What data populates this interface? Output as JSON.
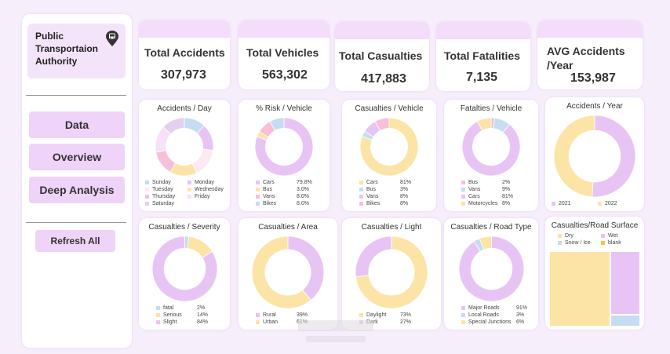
{
  "sidebar": {
    "org_name": "Public Transportaion Authority",
    "org_icon": "bus-location-pin-icon",
    "nav": [
      {
        "label": "Data"
      },
      {
        "label": "Overview"
      },
      {
        "label": "Deep Analysis"
      }
    ],
    "refresh_label": "Refresh All"
  },
  "kpis": [
    {
      "label": "Total Accidents",
      "value": "307,973"
    },
    {
      "label": "Total Vehicles",
      "value": "563,302"
    },
    {
      "label": "Total Casualties",
      "value": "417,883"
    },
    {
      "label": "Total Fatalities",
      "value": "7,135"
    },
    {
      "label": "AVG Accidents /Year",
      "value": "153,987"
    }
  ],
  "colors": {
    "background": "#f7eefb",
    "accent": "#efd3f8",
    "lavender": "#e8c4f4",
    "peach": "#fbe4a6",
    "blue": "#c5dcf2",
    "pink": "#f8bfd8"
  },
  "chart_data": [
    {
      "type": "donut",
      "title": "Accidents / Day",
      "categories": [
        "Sunday",
        "Monday",
        "Tuesday",
        "Wednesday",
        "Thursday",
        "Friday",
        "Saturday"
      ],
      "values": [
        12,
        15,
        16,
        15,
        14,
        15,
        13
      ],
      "colors": [
        "#c5dcf2",
        "#e8c4f4",
        "#fce9f1",
        "#fbe4a6",
        "#f8bfd8",
        "#f6e1f8",
        "#e4d0ee"
      ],
      "legend_columns": 2
    },
    {
      "type": "donut",
      "title": "% Risk / Vehicle",
      "categories": [
        "Cars",
        "Bus",
        "Vans",
        "Bikes"
      ],
      "labels": [
        "79.8%",
        "3.0%",
        "8.0%",
        "8.0%"
      ],
      "values": [
        79.8,
        3.0,
        8.0,
        8.0
      ],
      "colors": [
        "#e8c4f4",
        "#fbe4a6",
        "#f8bfd8",
        "#c5dcf2"
      ]
    },
    {
      "type": "donut",
      "title": "Casualties / Vehicle",
      "categories": [
        "Cars",
        "Bus",
        "Vans",
        "Bikes"
      ],
      "labels": [
        "81%",
        "3%",
        "8%",
        "8%"
      ],
      "values": [
        81,
        3,
        8,
        8
      ],
      "colors": [
        "#fbe4a6",
        "#c5dcf2",
        "#e8c4f4",
        "#f8bfd8"
      ]
    },
    {
      "type": "donut",
      "title": "Fatalties / Vehicle",
      "categories": [
        "Bus",
        "Vans",
        "Cars",
        "Motorcycles"
      ],
      "labels": [
        "2%",
        "9%",
        "81%",
        "8%"
      ],
      "values": [
        2,
        9,
        81,
        8
      ],
      "colors": [
        "#f8bfd8",
        "#c5dcf2",
        "#e8c4f4",
        "#fbe4a6"
      ]
    },
    {
      "type": "donut",
      "title": "Accidents / Year",
      "categories": [
        "2021",
        "2022"
      ],
      "values": [
        51,
        49
      ],
      "colors": [
        "#e8c4f4",
        "#fbe4a6"
      ],
      "legend_columns": 2
    },
    {
      "type": "donut",
      "title": "Casualties / Severity",
      "categories": [
        "fatal",
        "Serious",
        "Slight"
      ],
      "labels": [
        "2%",
        "14%",
        "84%"
      ],
      "values": [
        2,
        14,
        84
      ],
      "colors": [
        "#c5dcf2",
        "#fbe4a6",
        "#e8c4f4"
      ]
    },
    {
      "type": "donut",
      "title": "Casualties / Area",
      "categories": [
        "Rural",
        "Urban"
      ],
      "labels": [
        "39%",
        "61%"
      ],
      "values": [
        39,
        61
      ],
      "colors": [
        "#e8c4f4",
        "#fbe4a6"
      ]
    },
    {
      "type": "donut",
      "title": "Casualties / Light",
      "categories": [
        "Daylight",
        "Dark"
      ],
      "labels": [
        "73%",
        "27%"
      ],
      "values": [
        73,
        27
      ],
      "colors": [
        "#fbe4a6",
        "#e8c4f4"
      ]
    },
    {
      "type": "donut",
      "title": "Casualties / Road Type",
      "categories": [
        "Major Roads",
        "Local Roads",
        "Special Junctions"
      ],
      "labels": [
        "91%",
        "3%",
        "6%"
      ],
      "values": [
        91,
        3,
        6
      ],
      "colors": [
        "#e8c4f4",
        "#c5dcf2",
        "#fbe4a6"
      ]
    },
    {
      "type": "treemap",
      "title": "Casualties/Road Surface",
      "categories": [
        "Dry",
        "Wet",
        "Snow / Ice",
        "blank"
      ],
      "values": [
        67,
        28,
        5,
        0
      ],
      "colors": [
        "#fbe4a6",
        "#e8c4f4",
        "#c5dcf2",
        "#f5c542"
      ],
      "legend_columns": 2
    }
  ]
}
